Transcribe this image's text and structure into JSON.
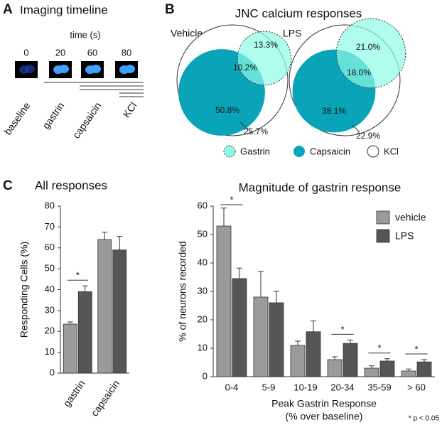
{
  "panel_labels": [
    "A",
    "B",
    "C"
  ],
  "timeline": {
    "title": "Imaging timeline",
    "axis_label": "time (s)",
    "times": [
      0,
      20,
      60,
      80
    ],
    "stages": [
      "baseline",
      "gastrin",
      "capsaicin",
      "KCl"
    ]
  },
  "chart_data": [
    {
      "type": "venn",
      "title": "JNC calcium responses",
      "series": [
        {
          "name": "Gastrin",
          "color": "#8ffbe6"
        },
        {
          "name": "Capsaicin",
          "color": "#0aa4b8"
        },
        {
          "name": "KCl",
          "color": "#ffffff"
        }
      ],
      "groups": [
        {
          "name": "Vehicle",
          "values": [
            13.3,
            10.2,
            50.8,
            25.7
          ],
          "value_labels": [
            "13.3%",
            "10.2%",
            "50.8%",
            "25.7%"
          ]
        },
        {
          "name": "LPS",
          "values": [
            21.0,
            18.0,
            38.1,
            22.9
          ],
          "value_labels": [
            "21.0%",
            "18.0%",
            "38.1%",
            "22.9%"
          ]
        }
      ]
    },
    {
      "type": "bar",
      "title": "All responses",
      "ylabel": "Responding Cells (%)",
      "categories": [
        "gastrin",
        "capsaicin"
      ],
      "series": [
        {
          "name": "vehicle",
          "color": "#9b9b9b",
          "values": [
            23.5,
            64
          ],
          "errors": [
            1,
            3.5
          ]
        },
        {
          "name": "LPS",
          "color": "#555555",
          "values": [
            39,
            59
          ],
          "errors": [
            2.8,
            6.5
          ]
        }
      ],
      "significance": [
        "*",
        null
      ],
      "ylim": [
        0,
        80
      ],
      "yticks": [
        0,
        10,
        20,
        30,
        40,
        50,
        60,
        70,
        80
      ]
    },
    {
      "type": "bar",
      "title": "Magnitude of gastrin response",
      "ylabel": "% of neurons recorded",
      "xlabel": "Peak Gastrin Response",
      "xlabel_sub": "(% over baseline)",
      "categories": [
        "0-4",
        "5-9",
        "10-19",
        "20-34",
        "35-59",
        "> 60"
      ],
      "series": [
        {
          "name": "vehicle",
          "color": "#9b9b9b",
          "values": [
            53,
            28,
            11,
            6,
            3,
            2
          ],
          "errors": [
            6.3,
            9,
            1.5,
            1,
            0.8,
            0.7
          ]
        },
        {
          "name": "LPS",
          "color": "#555555",
          "values": [
            34.5,
            26,
            15.8,
            11.7,
            5.5,
            5.2
          ],
          "errors": [
            3.7,
            4,
            3.8,
            1.2,
            0.8,
            0.8
          ]
        }
      ],
      "significance": [
        "*",
        null,
        null,
        "*",
        "*",
        "*"
      ],
      "legend_position": "upper right",
      "note": "* p < 0.05",
      "ylim": [
        0,
        60
      ],
      "yticks": [
        0,
        10,
        20,
        30,
        40,
        50,
        60
      ]
    }
  ]
}
